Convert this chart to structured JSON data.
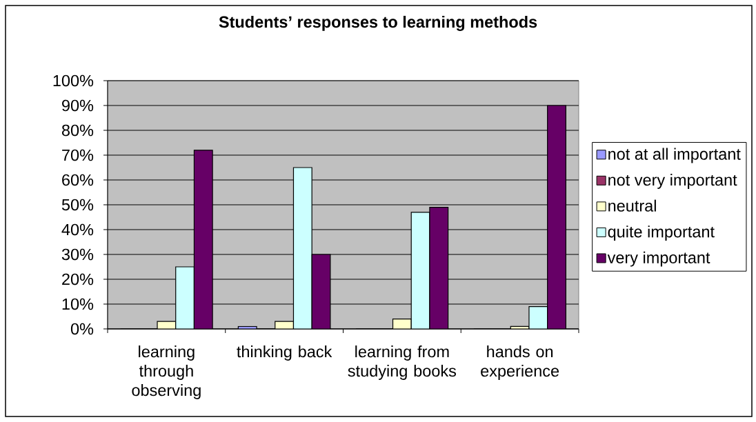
{
  "chart_data": {
    "type": "bar",
    "title": "Students’ responses to learning methods",
    "categories": [
      "learning through observing",
      "thinking back",
      "learning from studying books",
      "hands on experience"
    ],
    "series": [
      {
        "name": "not at all important",
        "color": "#9999ff",
        "values": [
          0,
          1,
          0,
          0
        ]
      },
      {
        "name": "not very important",
        "color": "#993366",
        "values": [
          0,
          0,
          0,
          0
        ]
      },
      {
        "name": "neutral",
        "color": "#ffffcc",
        "values": [
          3,
          3,
          4,
          1
        ]
      },
      {
        "name": "quite important",
        "color": "#ccffff",
        "values": [
          25,
          65,
          47,
          9
        ]
      },
      {
        "name": "very important",
        "color": "#660066",
        "values": [
          72,
          30,
          49,
          90
        ]
      }
    ],
    "ylim": [
      0,
      100
    ],
    "yticks": [
      {
        "value": 0,
        "label": "0%"
      },
      {
        "value": 10,
        "label": "10%"
      },
      {
        "value": 20,
        "label": "20%"
      },
      {
        "value": 30,
        "label": "30%"
      },
      {
        "value": 40,
        "label": "40%"
      },
      {
        "value": 50,
        "label": "50%"
      },
      {
        "value": 60,
        "label": "60%"
      },
      {
        "value": 70,
        "label": "70%"
      },
      {
        "value": 80,
        "label": "80%"
      },
      {
        "value": 90,
        "label": "90%"
      },
      {
        "value": 100,
        "label": "100%"
      }
    ],
    "grid": "y",
    "legend": "right"
  }
}
